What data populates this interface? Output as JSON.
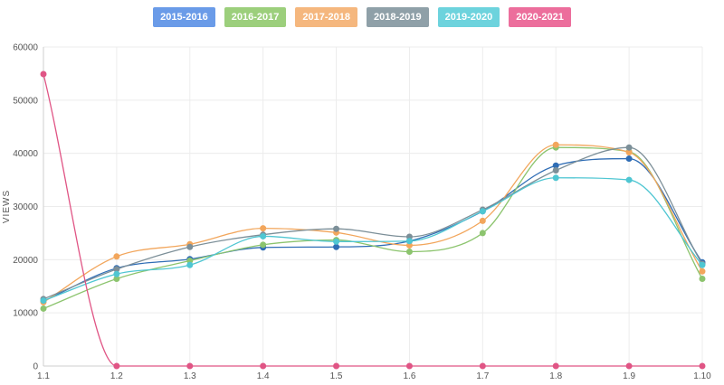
{
  "chart_data": {
    "type": "line",
    "title": "",
    "xlabel": "",
    "ylabel": "VIEWS",
    "ylim": [
      0,
      60000
    ],
    "yticks": [
      "0",
      "10000",
      "20000",
      "30000",
      "40000",
      "50000",
      "60000"
    ],
    "categories": [
      "1.1",
      "1.2",
      "1.3",
      "1.4",
      "1.5",
      "1.6",
      "1.7",
      "1.8",
      "1.9",
      "1.10"
    ],
    "grid": true,
    "legend_position": "top-center",
    "series": [
      {
        "name": "2015-2016",
        "color": "#6a9be8",
        "line_color": "#2f6db5",
        "values": [
          12200,
          18400,
          20100,
          22300,
          22400,
          23500,
          29100,
          37700,
          39000,
          19500
        ]
      },
      {
        "name": "2016-2017",
        "color": "#9ccf7c",
        "line_color": "#8cc46e",
        "values": [
          10800,
          16400,
          19800,
          22800,
          23700,
          21500,
          25000,
          41100,
          40300,
          16400
        ]
      },
      {
        "name": "2017-2018",
        "color": "#f5b77e",
        "line_color": "#f2a65c",
        "values": [
          12000,
          20600,
          22900,
          25900,
          25100,
          22700,
          27300,
          41600,
          40200,
          17800
        ]
      },
      {
        "name": "2018-2019",
        "color": "#8fa0a8",
        "line_color": "#7c8f98",
        "values": [
          12600,
          18200,
          22400,
          24700,
          25800,
          24300,
          29400,
          36800,
          41100,
          19200
        ]
      },
      {
        "name": "2019-2020",
        "color": "#6dd3dd",
        "line_color": "#4fc6d2",
        "values": [
          12300,
          17300,
          19000,
          24400,
          23400,
          23500,
          29100,
          35400,
          35000,
          19000
        ]
      },
      {
        "name": "2020-2021",
        "color": "#ec6e9c",
        "line_color": "#e05585",
        "values": [
          54900,
          0,
          0,
          0,
          0,
          0,
          0,
          0,
          0,
          0
        ]
      }
    ]
  }
}
